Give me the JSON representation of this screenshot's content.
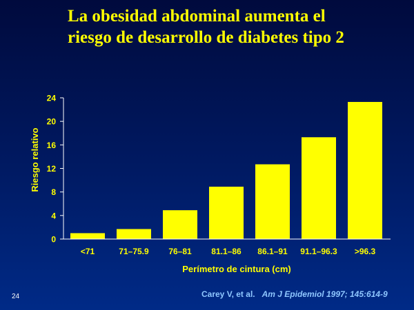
{
  "slide": {
    "title_line1": "La obesidad abdominal aumenta el",
    "title_line2": "riesgo de desarrollo de diabetes tipo 2",
    "page_number": "24",
    "citation_authors": "Carey V, et al.",
    "citation_journal": "Am J Epidemiol 1997; 145:614-9"
  },
  "colors": {
    "title": "#ffff00",
    "bars": "#ffff00",
    "axis_text": "#ffff00",
    "citation": "#8fc7ff",
    "background": "#001a63"
  },
  "chart_data": {
    "type": "bar",
    "title": "",
    "xlabel": "Perímetro de cintura (cm)",
    "ylabel": "Riesgo relativo",
    "categories": [
      "<71",
      "71–75.9",
      "76–81",
      "81.1–86",
      "86.1–91",
      "91.1–96.3",
      ">96.3"
    ],
    "values": [
      1.0,
      1.7,
      4.9,
      8.9,
      12.7,
      17.3,
      23.3
    ],
    "ylim": [
      0,
      24
    ],
    "yticks": [
      0,
      4,
      8,
      12,
      16,
      20,
      24
    ],
    "grid": false,
    "legend": "none"
  }
}
